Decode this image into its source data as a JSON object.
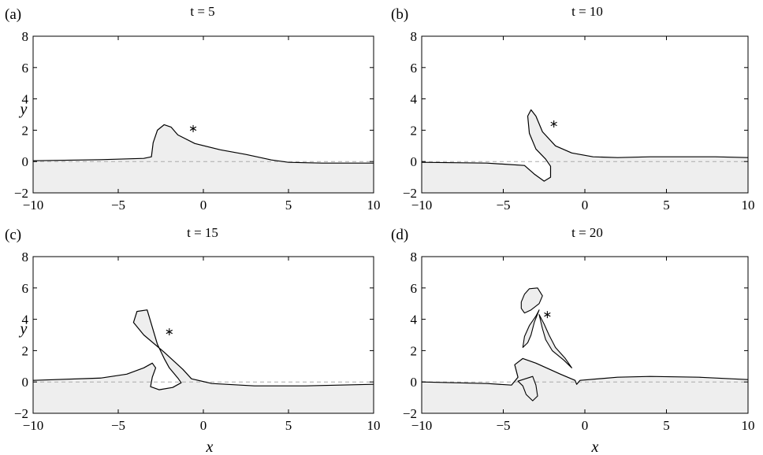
{
  "figure": {
    "xlabel": "x",
    "ylabel": "y",
    "panels": [
      {
        "letter": "(a)",
        "title": "t = 5"
      },
      {
        "letter": "(b)",
        "title": "t = 10"
      },
      {
        "letter": "(c)",
        "title": "t = 15"
      },
      {
        "letter": "(d)",
        "title": "t = 20"
      }
    ],
    "colors": {
      "fill": "#eeeeee",
      "line": "#000000",
      "baseline": "#aaaaaa"
    }
  },
  "chart_data": [
    {
      "type": "area",
      "title": "t = 5",
      "xlabel": "",
      "ylabel": "y",
      "xlim": [
        -10,
        10
      ],
      "ylim": [
        -2,
        8
      ],
      "xticks": [
        -10,
        -5,
        0,
        5,
        10
      ],
      "yticks": [
        -2,
        0,
        2,
        4,
        6,
        8
      ],
      "grid": false,
      "vortex_marker": {
        "x": -0.6,
        "y": 2.1
      },
      "interface": [
        [
          -10,
          0.05
        ],
        [
          -6,
          0.12
        ],
        [
          -3.5,
          0.2
        ],
        [
          -3.05,
          0.3
        ],
        [
          -2.95,
          1.2
        ],
        [
          -2.7,
          2.0
        ],
        [
          -2.3,
          2.35
        ],
        [
          -1.9,
          2.2
        ],
        [
          -1.5,
          1.7
        ],
        [
          -0.5,
          1.15
        ],
        [
          1,
          0.75
        ],
        [
          2.5,
          0.45
        ],
        [
          4,
          0.1
        ],
        [
          5,
          -0.05
        ],
        [
          7,
          -0.1
        ],
        [
          10,
          -0.1
        ]
      ],
      "extra_curves": []
    },
    {
      "type": "area",
      "title": "t = 10",
      "xlabel": "",
      "ylabel": "",
      "xlim": [
        -10,
        10
      ],
      "ylim": [
        -2,
        8
      ],
      "xticks": [
        -10,
        -5,
        0,
        5,
        10
      ],
      "yticks": [
        -2,
        0,
        2,
        4,
        6,
        8
      ],
      "grid": false,
      "vortex_marker": {
        "x": -1.9,
        "y": 2.4
      },
      "interface": [
        [
          -10,
          -0.05
        ],
        [
          -6,
          -0.1
        ],
        [
          -3.7,
          -0.25
        ],
        [
          -3.1,
          -0.8
        ],
        [
          -2.5,
          -1.25
        ],
        [
          -2.1,
          -1.0
        ],
        [
          -2.1,
          -0.3
        ],
        [
          -2.4,
          0.15
        ],
        [
          -3.0,
          0.8
        ],
        [
          -3.4,
          1.8
        ],
        [
          -3.5,
          2.9
        ],
        [
          -3.3,
          3.3
        ],
        [
          -3.0,
          2.9
        ],
        [
          -2.6,
          1.9
        ],
        [
          -1.8,
          1.0
        ],
        [
          -0.8,
          0.55
        ],
        [
          0.5,
          0.3
        ],
        [
          2,
          0.25
        ],
        [
          4,
          0.3
        ],
        [
          6,
          0.3
        ],
        [
          8,
          0.3
        ],
        [
          10,
          0.25
        ]
      ],
      "extra_curves": []
    },
    {
      "type": "area",
      "title": "t = 15",
      "xlabel": "x",
      "ylabel": "y",
      "xlim": [
        -10,
        10
      ],
      "ylim": [
        -2,
        8
      ],
      "xticks": [
        -10,
        -5,
        0,
        5,
        10
      ],
      "yticks": [
        -2,
        0,
        2,
        4,
        6,
        8
      ],
      "grid": false,
      "vortex_marker": {
        "x": -2.0,
        "y": 3.2
      },
      "interface": [
        [
          -10,
          0.1
        ],
        [
          -6,
          0.25
        ],
        [
          -4.5,
          0.5
        ],
        [
          -3.5,
          0.9
        ],
        [
          -3.0,
          1.2
        ],
        [
          -2.8,
          0.9
        ],
        [
          -3.0,
          0.3
        ],
        [
          -3.1,
          -0.3
        ],
        [
          -2.6,
          -0.5
        ],
        [
          -1.8,
          -0.35
        ],
        [
          -1.3,
          -0.05
        ],
        [
          -1.5,
          0.25
        ],
        [
          -2.0,
          0.9
        ],
        [
          -2.3,
          1.5
        ],
        [
          -2.7,
          2.4
        ],
        [
          -3.0,
          3.5
        ],
        [
          -3.3,
          4.6
        ],
        [
          -3.9,
          4.5
        ],
        [
          -4.1,
          3.8
        ],
        [
          -3.5,
          3.0
        ],
        [
          -2.3,
          1.9
        ],
        [
          -1.2,
          0.8
        ],
        [
          -0.7,
          0.2
        ],
        [
          0.5,
          -0.1
        ],
        [
          3,
          -0.25
        ],
        [
          6,
          -0.25
        ],
        [
          8,
          -0.2
        ],
        [
          10,
          -0.15
        ]
      ],
      "extra_curves": []
    },
    {
      "type": "area",
      "title": "t = 20",
      "xlabel": "x",
      "ylabel": "",
      "xlim": [
        -10,
        10
      ],
      "ylim": [
        -2,
        8
      ],
      "xticks": [
        -10,
        -5,
        0,
        5,
        10
      ],
      "yticks": [
        -2,
        0,
        2,
        4,
        6,
        8
      ],
      "grid": false,
      "vortex_marker": {
        "x": -2.3,
        "y": 4.3
      },
      "interface": [
        [
          -10,
          0
        ],
        [
          -6,
          -0.1
        ],
        [
          -4.5,
          -0.2
        ],
        [
          -4.1,
          0.3
        ],
        [
          -4.3,
          1.1
        ],
        [
          -3.8,
          1.5
        ],
        [
          -3.0,
          1.2
        ],
        [
          -1.5,
          0.5
        ],
        [
          -0.6,
          0.1
        ],
        [
          -0.5,
          -0.15
        ],
        [
          -0.3,
          0.1
        ],
        [
          2,
          0.3
        ],
        [
          4,
          0.35
        ],
        [
          7,
          0.3
        ],
        [
          10,
          0.15
        ]
      ],
      "extra_curves": [
        [
          [
            -4.1,
            0.05
          ],
          [
            -3.8,
            -0.25
          ],
          [
            -3.6,
            -0.8
          ],
          [
            -3.2,
            -1.2
          ],
          [
            -2.9,
            -0.9
          ],
          [
            -3.0,
            -0.2
          ],
          [
            -3.2,
            0.35
          ]
        ],
        [
          [
            -3.9,
            5.1
          ],
          [
            -3.7,
            5.6
          ],
          [
            -3.4,
            5.95
          ],
          [
            -2.9,
            6.0
          ],
          [
            -2.6,
            5.5
          ],
          [
            -2.8,
            5.0
          ],
          [
            -3.3,
            4.6
          ],
          [
            -3.7,
            4.4
          ],
          [
            -3.9,
            4.7
          ]
        ],
        [
          [
            -3.8,
            2.2
          ],
          [
            -3.7,
            2.9
          ],
          [
            -3.4,
            3.6
          ],
          [
            -3.0,
            4.2
          ],
          [
            -2.8,
            4.6
          ],
          [
            -3.1,
            3.8
          ],
          [
            -3.3,
            3.0
          ],
          [
            -3.5,
            2.5
          ]
        ],
        [
          [
            -2.8,
            4.3
          ],
          [
            -2.5,
            3.7
          ],
          [
            -2.2,
            3.0
          ],
          [
            -1.8,
            2.2
          ],
          [
            -1.2,
            1.5
          ],
          [
            -0.8,
            0.9
          ],
          [
            -1.3,
            1.4
          ],
          [
            -2.0,
            2.0
          ],
          [
            -2.4,
            2.7
          ],
          [
            -2.6,
            3.4
          ]
        ]
      ]
    }
  ]
}
